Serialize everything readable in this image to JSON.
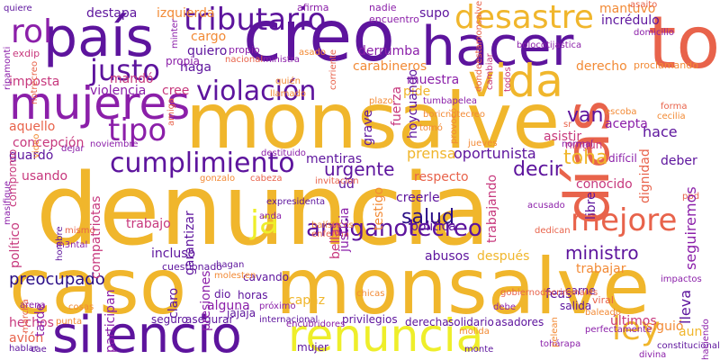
{
  "palette": {
    "c1": "#f0b62c",
    "c2": "#8b1fa9",
    "c3": "#5d149d",
    "c4": "#eeee2a",
    "c5": "#e8634b",
    "c6": "#f28a35",
    "c7": "#c7387d",
    "c8": "#2a0e86"
  },
  "words": [
    {
      "text": "denuncia",
      "color": "c1"
    },
    {
      "text": "monsalve",
      "color": "c1"
    },
    {
      "text": "caso",
      "color": "c1"
    },
    {
      "text": "monsalve",
      "color": "c1"
    },
    {
      "text": "creo",
      "color": "c3"
    },
    {
      "text": "país",
      "color": "c3"
    },
    {
      "text": "hacer",
      "color": "c3"
    },
    {
      "text": "silencio",
      "color": "c3"
    },
    {
      "text": "renuncia",
      "color": "c4"
    },
    {
      "text": "días",
      "color": "c5"
    },
    {
      "text": "toda",
      "color": "c5"
    },
    {
      "text": "mujeres",
      "color": "c2"
    },
    {
      "text": "vida",
      "color": "c1"
    },
    {
      "text": "desastre",
      "color": "c1"
    },
    {
      "text": "tributario",
      "color": "c3"
    },
    {
      "text": "justo",
      "color": "c3"
    },
    {
      "text": "violación",
      "color": "c3"
    },
    {
      "text": "cumplimiento",
      "color": "c3"
    },
    {
      "text": "tipo",
      "color": "c2"
    },
    {
      "text": "rol",
      "color": "c2"
    },
    {
      "text": "mejore",
      "color": "c5"
    },
    {
      "text": "ley",
      "color": "c1"
    },
    {
      "text": "ja",
      "color": "c4"
    },
    {
      "text": "amiganotecreo",
      "color": "c3"
    },
    {
      "text": "preocupado",
      "color": "c8"
    },
    {
      "text": "ministro",
      "color": "c3"
    },
    {
      "text": "urgente",
      "color": "c3"
    },
    {
      "text": "decir",
      "color": "c3"
    },
    {
      "text": "salud",
      "color": "c8"
    },
    {
      "text": "van",
      "color": "c3"
    },
    {
      "text": "destapa",
      "color": "c3"
    },
    {
      "text": "izquierda",
      "color": "c6"
    },
    {
      "text": "supo",
      "color": "c3"
    },
    {
      "text": "mantuvo",
      "color": "c6"
    },
    {
      "text": "incrédulo",
      "color": "c3"
    },
    {
      "text": "hace",
      "color": "c3"
    },
    {
      "text": "deber",
      "color": "c3"
    },
    {
      "text": "aquello",
      "color": "c5"
    },
    {
      "text": "imposta",
      "color": "c7"
    },
    {
      "text": "concepción",
      "color": "c7"
    },
    {
      "text": "guardó",
      "color": "c3"
    },
    {
      "text": "usando",
      "color": "c7"
    },
    {
      "text": "político",
      "color": "c7"
    },
    {
      "text": "mandó",
      "color": "c7"
    },
    {
      "text": "violencia",
      "color": "c2"
    },
    {
      "text": "cree",
      "color": "c7"
    },
    {
      "text": "haga",
      "color": "c3"
    },
    {
      "text": "cargo",
      "color": "c6"
    },
    {
      "text": "quiero",
      "color": "c3"
    },
    {
      "text": "propio",
      "color": "c2"
    },
    {
      "text": "derrumba",
      "color": "c2"
    },
    {
      "text": "carabineros",
      "color": "c6"
    },
    {
      "text": "muestra",
      "color": "c2"
    },
    {
      "text": "pide",
      "color": "c1"
    },
    {
      "text": "fuerza",
      "color": "c7"
    },
    {
      "text": "hoycuando",
      "color": "c3"
    },
    {
      "text": "derecho",
      "color": "c6"
    },
    {
      "text": "proclamando",
      "color": "c6"
    },
    {
      "text": "acepta",
      "color": "c2"
    },
    {
      "text": "asistir",
      "color": "c7"
    },
    {
      "text": "ningún",
      "color": "c7"
    },
    {
      "text": "dignidad",
      "color": "c5"
    },
    {
      "text": "difícil",
      "color": "c2"
    },
    {
      "text": "mentiras",
      "color": "c3"
    },
    {
      "text": "prensa",
      "color": "c1"
    },
    {
      "text": "oportunista",
      "color": "c3"
    },
    {
      "text": "toha",
      "color": "c1"
    },
    {
      "text": "respecto",
      "color": "c5"
    },
    {
      "text": "ud",
      "color": "c3"
    },
    {
      "text": "grave",
      "color": "c3"
    },
    {
      "text": "testigo",
      "color": "c6"
    },
    {
      "text": "creerle",
      "color": "c3"
    },
    {
      "text": "política",
      "color": "c3"
    },
    {
      "text": "trabajando",
      "color": "c7"
    },
    {
      "text": "justicia",
      "color": "c2"
    },
    {
      "text": "conocido",
      "color": "c7"
    },
    {
      "text": "trabajar",
      "color": "c6"
    },
    {
      "text": "seguiremos",
      "color": "c2"
    },
    {
      "text": "libre",
      "color": "c3"
    },
    {
      "text": "garantizar",
      "color": "c3"
    },
    {
      "text": "presiones",
      "color": "c2"
    },
    {
      "text": "trabajo",
      "color": "c7"
    },
    {
      "text": "compatriotas",
      "color": "c7"
    },
    {
      "text": "incluso",
      "color": "c3"
    },
    {
      "text": "abusos",
      "color": "c3"
    },
    {
      "text": "después",
      "color": "c1"
    },
    {
      "text": "cuestionado",
      "color": "c3"
    },
    {
      "text": "claro",
      "color": "c3"
    },
    {
      "text": "cavando",
      "color": "c3"
    },
    {
      "text": "dio",
      "color": "c3"
    },
    {
      "text": "alguna",
      "color": "c2"
    },
    {
      "text": "horas",
      "color": "c3"
    },
    {
      "text": "jajaja",
      "color": "c3"
    },
    {
      "text": "bellas",
      "color": "c7"
    },
    {
      "text": "tarde",
      "color": "c2"
    },
    {
      "text": "participan",
      "color": "c2"
    },
    {
      "text": "hechos",
      "color": "c7"
    },
    {
      "text": "avión",
      "color": "c5"
    },
    {
      "text": "seguro",
      "color": "c3"
    },
    {
      "text": "asegurar",
      "color": "c3"
    },
    {
      "text": "capaz",
      "color": "c1"
    },
    {
      "text": "internacional",
      "color": "c3"
    },
    {
      "text": "privilegios",
      "color": "c3"
    },
    {
      "text": "derecha",
      "color": "c3"
    },
    {
      "text": "solidario",
      "color": "c3"
    },
    {
      "text": "asadores",
      "color": "c3"
    },
    {
      "text": "mujer",
      "color": "c3"
    },
    {
      "text": "feas",
      "color": "c3"
    },
    {
      "text": "salida",
      "color": "c3"
    },
    {
      "text": "últimos",
      "color": "c7"
    },
    {
      "text": "siguió",
      "color": "c6"
    },
    {
      "text": "aun",
      "color": "c1"
    },
    {
      "text": "lleva",
      "color": "c3"
    },
    {
      "text": "carne",
      "color": "c3"
    },
    {
      "text": "viral",
      "color": "c5"
    },
    {
      "text": "exdip",
      "color": "c7"
    },
    {
      "text": "compromo",
      "color": "c7"
    },
    {
      "text": "afirma",
      "color": "c2"
    },
    {
      "text": "nadie",
      "color": "c2"
    },
    {
      "text": "encuentro",
      "color": "c2"
    },
    {
      "text": "propia",
      "color": "c2"
    },
    {
      "text": "cambiar",
      "color": "c7"
    },
    {
      "text": "todos",
      "color": "c7"
    },
    {
      "text": "minter",
      "color": "c2"
    },
    {
      "text": "asaito",
      "color": "c5"
    },
    {
      "text": "domicilio",
      "color": "c2"
    },
    {
      "text": "ripamonti",
      "color": "c2"
    },
    {
      "text": "notrecreo",
      "color": "c5"
    },
    {
      "text": "amiga",
      "color": "c5"
    },
    {
      "text": "nacional",
      "color": "c5"
    },
    {
      "text": "ministra",
      "color": "c2"
    },
    {
      "text": "corriente",
      "color": "c5"
    },
    {
      "text": "quién",
      "color": "c6"
    },
    {
      "text": "llamado",
      "color": "c6"
    },
    {
      "text": "provocó",
      "color": "c6"
    },
    {
      "text": "plazo",
      "color": "c6"
    },
    {
      "text": "tumbapelea",
      "color": "c2"
    },
    {
      "text": "boricnotecreo",
      "color": "c6"
    },
    {
      "text": "tomó",
      "color": "c6"
    },
    {
      "text": "jueves",
      "color": "c6"
    },
    {
      "text": "video",
      "color": "c6"
    },
    {
      "text": "sr",
      "color": "c5"
    },
    {
      "text": "escoba",
      "color": "c6"
    },
    {
      "text": "forma",
      "color": "c5"
    },
    {
      "text": "cecilia",
      "color": "c6"
    },
    {
      "text": "dejar",
      "color": "c2"
    },
    {
      "text": "noviembre",
      "color": "c2"
    },
    {
      "text": "normal",
      "color": "c2"
    },
    {
      "text": "destituido",
      "color": "c2"
    },
    {
      "text": "gonzalo",
      "color": "c6"
    },
    {
      "text": "cabeza",
      "color": "c5"
    },
    {
      "text": "invitacion",
      "color": "c5"
    },
    {
      "text": "expresidenta",
      "color": "c3"
    },
    {
      "text": "balísticos",
      "color": "c6"
    },
    {
      "text": "anda",
      "color": "c2"
    },
    {
      "text": "enferma",
      "color": "c5"
    },
    {
      "text": "dedican",
      "color": "c5"
    },
    {
      "text": "acusado",
      "color": "c2"
    },
    {
      "text": "ppd",
      "color": "c5"
    },
    {
      "text": "m3ntal",
      "color": "c2"
    },
    {
      "text": "mismo",
      "color": "c5"
    },
    {
      "text": "hombre",
      "color": "c3"
    },
    {
      "text": "hagan",
      "color": "c3"
    },
    {
      "text": "encubridores",
      "color": "c2"
    },
    {
      "text": "gobiernodecriminales",
      "color": "c5"
    },
    {
      "text": "arena",
      "color": "c2"
    },
    {
      "text": "cosas",
      "color": "c6"
    },
    {
      "text": "próximo",
      "color": "c2"
    },
    {
      "text": "chicas",
      "color": "c6"
    },
    {
      "text": "debe",
      "color": "c2"
    },
    {
      "text": "punta",
      "color": "c6"
    },
    {
      "text": "perfectamente",
      "color": "c2"
    },
    {
      "text": "baleado",
      "color": "c6"
    },
    {
      "text": "impactos",
      "color": "c2"
    },
    {
      "text": "haciendo",
      "color": "c2"
    },
    {
      "text": "pelean",
      "color": "c6"
    },
    {
      "text": "molida",
      "color": "c6"
    },
    {
      "text": "constitucionalmente",
      "color": "c3"
    },
    {
      "text": "tohárapa",
      "color": "c2"
    },
    {
      "text": "divina",
      "color": "c2"
    },
    {
      "text": "monte",
      "color": "c3"
    },
    {
      "text": "quiere",
      "color": "c3"
    },
    {
      "text": "hablar",
      "color": "c3"
    },
    {
      "text": "cae",
      "color": "c3"
    },
    {
      "text": "marcha",
      "color": "c5"
    },
    {
      "text": "masifique",
      "color": "c2"
    },
    {
      "text": "asado",
      "color": "c6"
    },
    {
      "text": "bolocotijastica",
      "color": "c2"
    },
    {
      "text": "dondeestamonsalve",
      "color": "c5"
    },
    {
      "text": "molesten",
      "color": "c6"
    },
    {
      "text": "favor",
      "color": "c6"
    },
    {
      "text": "pura",
      "color": "c6"
    },
    {
      "text": "manejo",
      "color": "c2"
    },
    {
      "text": "podría",
      "color": "c2"
    }
  ]
}
